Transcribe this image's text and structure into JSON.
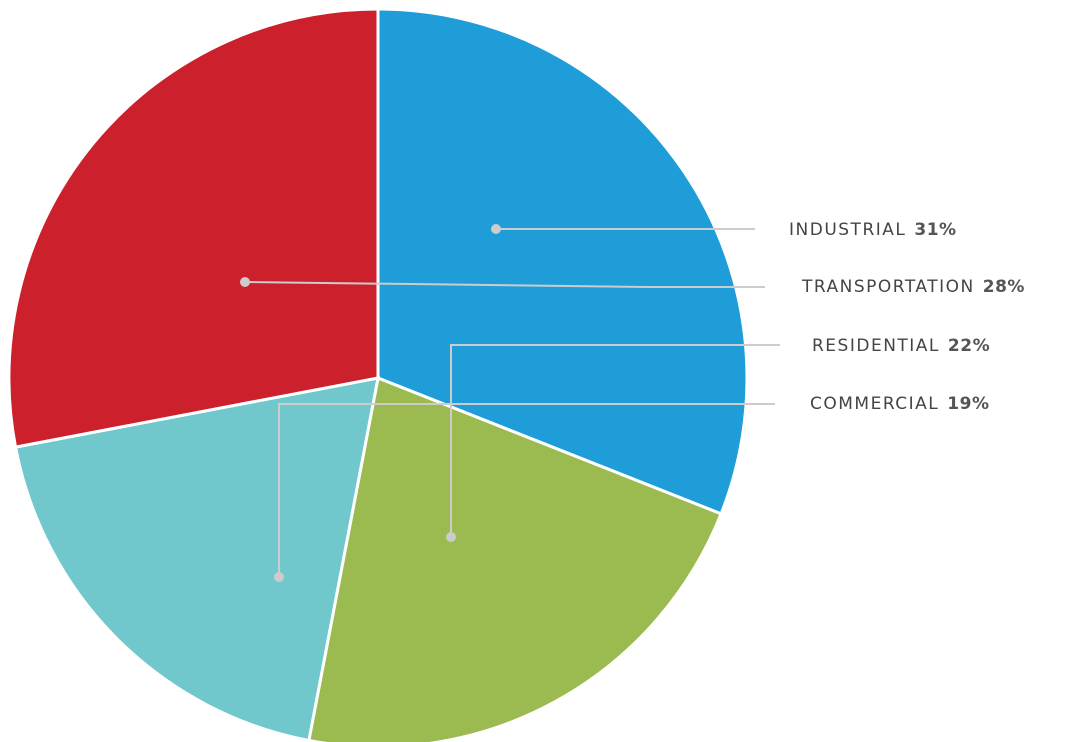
{
  "chart_data": {
    "type": "pie",
    "categories": [
      "INDUSTRIAL",
      "RESIDENTIAL",
      "COMMERCIAL",
      "TRANSPORTATION"
    ],
    "values": [
      31,
      22,
      19,
      28
    ],
    "value_labels": [
      "31%",
      "22%",
      "19%",
      "28%"
    ],
    "colors": [
      "#1e9dd8",
      "#9bbb50",
      "#70c8cc",
      "#cc202c"
    ]
  }
}
